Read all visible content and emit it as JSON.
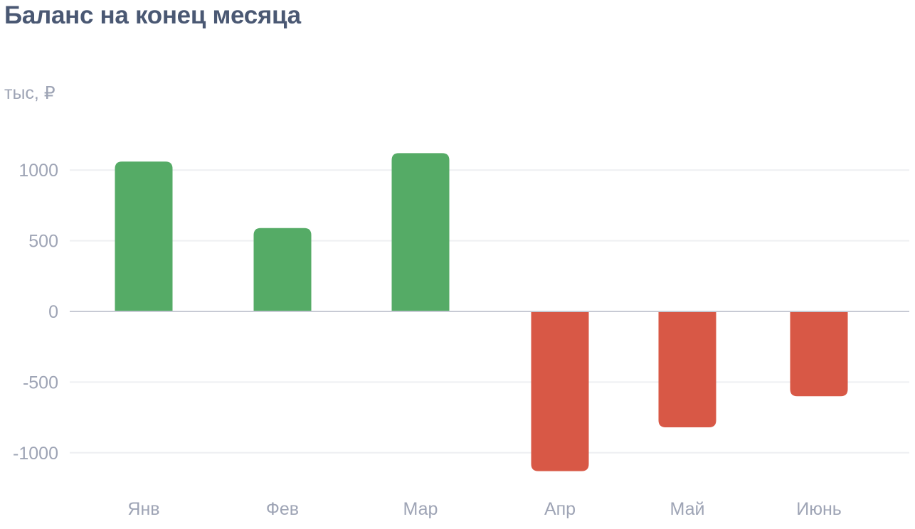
{
  "chart_data": {
    "type": "bar",
    "title": "Баланс на конец месяца",
    "ylabel": "тыс, ₽",
    "categories": [
      "Янв",
      "Фев",
      "Мар",
      "Апр",
      "Май",
      "Июнь"
    ],
    "values": [
      1060,
      590,
      1120,
      -1130,
      -820,
      -600
    ],
    "yticks": [
      1000,
      500,
      0,
      -500,
      -1000
    ],
    "ylim": [
      -1200,
      1200
    ],
    "grid": true,
    "colors": {
      "positive": "#55ab66",
      "negative": "#d85846",
      "grid": "#eeeff2",
      "zero_line": "#c7cad4"
    }
  }
}
